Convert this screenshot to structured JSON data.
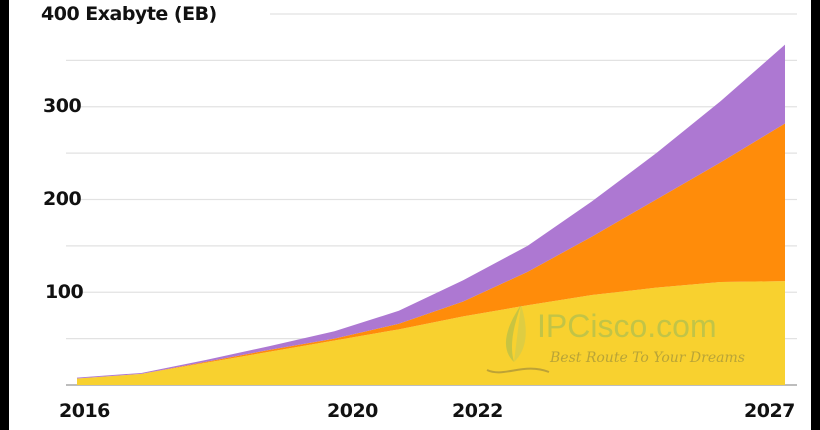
{
  "chart_data": {
    "type": "area",
    "stacked": true,
    "title": "",
    "ylabel": "Exabyte (EB)",
    "xlabel": "",
    "x": [
      2016,
      2017,
      2018,
      2019,
      2020,
      2021,
      2022,
      2023,
      2024,
      2025,
      2026,
      2027
    ],
    "x_tick_labels": [
      "2016",
      "2020",
      "2022",
      "2027"
    ],
    "y_tick_labels": [
      "100",
      "200",
      "300",
      "400"
    ],
    "ylim": [
      0,
      400
    ],
    "grid": true,
    "grid_step": 50,
    "legend": "none",
    "series": [
      {
        "name": "yellow-series",
        "color": "#F8D12F",
        "values": [
          7,
          12,
          24,
          36,
          48,
          60,
          74,
          86,
          97,
          105,
          111,
          112
        ]
      },
      {
        "name": "orange-series",
        "color": "#FF8C0A",
        "values": [
          0,
          0,
          1,
          2,
          2,
          6,
          16,
          36,
          63,
          95,
          129,
          170
        ]
      },
      {
        "name": "purple-series",
        "color": "#AD78D2",
        "values": [
          1,
          1,
          2,
          4,
          8,
          14,
          23,
          28,
          38,
          50,
          66,
          85
        ]
      }
    ],
    "cumulative_tops": {
      "yellow": [
        7,
        12,
        24,
        36,
        48,
        60,
        74,
        86,
        97,
        105,
        111,
        112
      ],
      "orange": [
        7,
        12,
        25,
        38,
        50,
        66,
        90,
        122,
        160,
        200,
        240,
        282
      ],
      "purple": [
        8,
        13,
        27,
        42,
        58,
        80,
        113,
        150,
        198,
        250,
        306,
        367
      ]
    }
  },
  "axis": {
    "y_top_label": "400 Exabyte (EB)",
    "y300": "300",
    "y200": "200",
    "y100": "100",
    "x2016": "2016",
    "x2020": "2020",
    "x2022": "2022",
    "x2027": "2027"
  },
  "watermark": {
    "main": "IPCisco.com",
    "tagline": "Best Route To Your Dreams"
  }
}
